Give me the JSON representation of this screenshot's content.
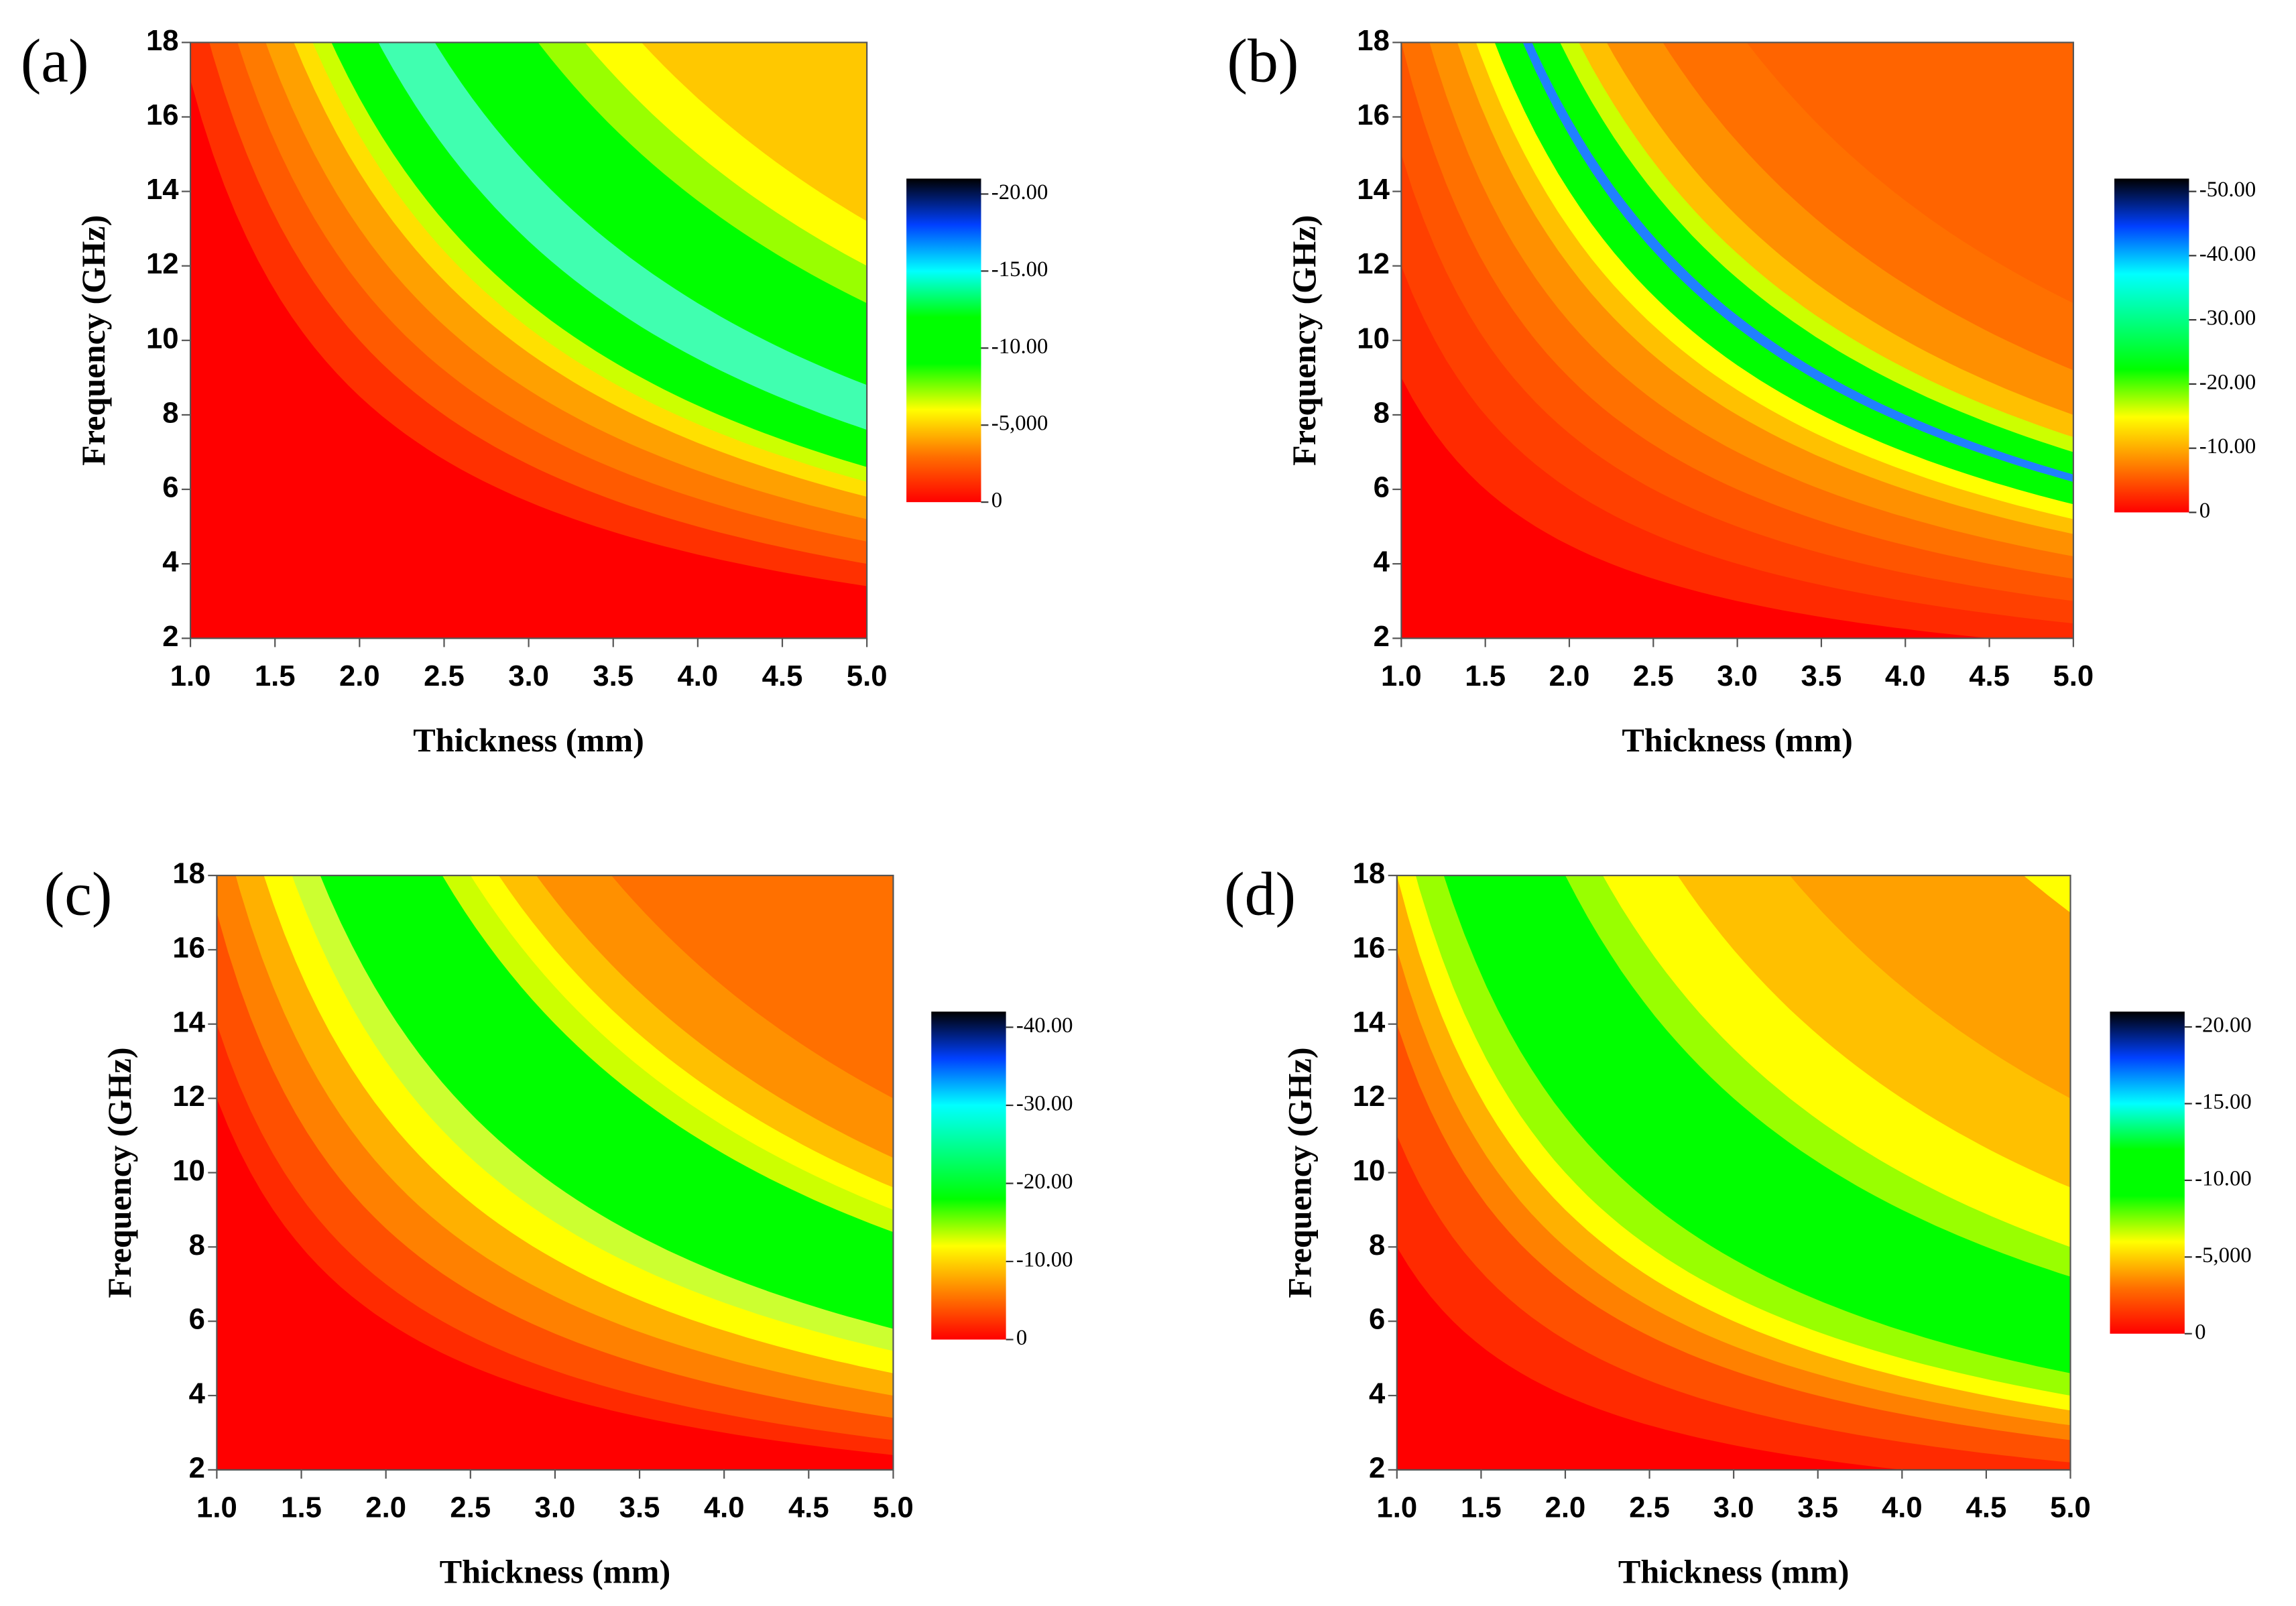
{
  "chart_data": [
    {
      "type": "contour",
      "label": "(a)",
      "xlabel": "Thickness (mm)",
      "ylabel": "Frequency (GHz)",
      "xlim": [
        1,
        5
      ],
      "xticks": [
        {
          "value": 1,
          "label": "1.0"
        },
        1.5,
        {
          "value": 2,
          "label": "2.0"
        },
        2.5,
        {
          "value": 3,
          "label": "3.0"
        },
        3.5,
        {
          "value": 4,
          "label": "4.0"
        },
        4.5,
        {
          "value": 5,
          "label": "5.0"
        }
      ],
      "ylim": [
        2,
        18
      ],
      "yticks": [
        2,
        4,
        6,
        8,
        10,
        12,
        14,
        16,
        18
      ],
      "colorbar": {
        "lim": [
          0,
          -21
        ],
        "ticks": [
          {
            "value": -20,
            "label": "-20.00"
          },
          {
            "value": -15,
            "label": "-15.00"
          },
          {
            "value": -10,
            "label": "-10.00"
          },
          {
            "value": -5,
            "label": "-5,000"
          },
          0
        ],
        "colors": [
          "#ff0000",
          "#ff7000",
          "#ffff00",
          "#00ff00",
          "#00ff00",
          "#00ffff",
          "#0040ff",
          "#000000"
        ]
      }
    },
    {
      "type": "contour",
      "label": "(b)",
      "xlabel": "Thickness (mm)",
      "ylabel": "Frequency (GHz)",
      "xlim": [
        1,
        5
      ],
      "xticks": [
        {
          "value": 1,
          "label": "1.0"
        },
        1.5,
        {
          "value": 2,
          "label": "2.0"
        },
        2.5,
        {
          "value": 3,
          "label": "3.0"
        },
        3.5,
        {
          "value": 4,
          "label": "4.0"
        },
        4.5,
        {
          "value": 5,
          "label": "5.0"
        }
      ],
      "ylim": [
        2,
        18
      ],
      "yticks": [
        2,
        4,
        6,
        8,
        10,
        12,
        14,
        16,
        18
      ],
      "colorbar": {
        "lim": [
          0,
          -52
        ],
        "ticks": [
          {
            "value": -50,
            "label": "-50.00"
          },
          {
            "value": -40,
            "label": "-40.00"
          },
          {
            "value": -30,
            "label": "-30.00"
          },
          {
            "value": -20,
            "label": "-20.00"
          },
          {
            "value": -10,
            "label": "-10.00"
          },
          0
        ],
        "colors": [
          "#ff0000",
          "#ff8000",
          "#ffff00",
          "#00ff00",
          "#00ff80",
          "#00ffff",
          "#0040ff",
          "#000000"
        ]
      }
    },
    {
      "type": "contour",
      "label": "(c)",
      "xlabel": "Thickness (mm)",
      "ylabel": "Frequency (GHz)",
      "xlim": [
        1,
        5
      ],
      "xticks": [
        {
          "value": 1,
          "label": "1.0"
        },
        1.5,
        {
          "value": 2,
          "label": "2.0"
        },
        2.5,
        {
          "value": 3,
          "label": "3.0"
        },
        3.5,
        {
          "value": 4,
          "label": "4.0"
        },
        4.5,
        {
          "value": 5,
          "label": "5.0"
        }
      ],
      "ylim": [
        2,
        18
      ],
      "yticks": [
        2,
        4,
        6,
        8,
        10,
        12,
        14,
        16,
        18
      ],
      "colorbar": {
        "lim": [
          0,
          -42
        ],
        "ticks": [
          {
            "value": -40,
            "label": "-40.00"
          },
          {
            "value": -30,
            "label": "-30.00"
          },
          {
            "value": -20,
            "label": "-20.00"
          },
          {
            "value": -10,
            "label": "-10.00"
          },
          0
        ],
        "colors": [
          "#ff0000",
          "#ff8000",
          "#ffff00",
          "#00ff00",
          "#00ff80",
          "#00ffff",
          "#0040ff",
          "#000000"
        ]
      }
    },
    {
      "type": "contour",
      "label": "(d)",
      "xlabel": "Thickness (mm)",
      "ylabel": "Frequency (GHz)",
      "xlim": [
        1,
        5
      ],
      "xticks": [
        {
          "value": 1,
          "label": "1.0"
        },
        1.5,
        {
          "value": 2,
          "label": "2.0"
        },
        2.5,
        {
          "value": 3,
          "label": "3.0"
        },
        3.5,
        {
          "value": 4,
          "label": "4.0"
        },
        4.5,
        {
          "value": 5,
          "label": "5.0"
        }
      ],
      "ylim": [
        2,
        18
      ],
      "yticks": [
        2,
        4,
        6,
        8,
        10,
        12,
        14,
        16,
        18
      ],
      "colorbar": {
        "lim": [
          0,
          -21
        ],
        "ticks": [
          {
            "value": -20,
            "label": "-20.00"
          },
          {
            "value": -15,
            "label": "-15.00"
          },
          {
            "value": -10,
            "label": "-10.00"
          },
          {
            "value": -5,
            "label": "-5,000"
          },
          0
        ],
        "colors": [
          "#ff0000",
          "#ff7000",
          "#ffff00",
          "#00ff00",
          "#00ff00",
          "#00ffff",
          "#0040ff",
          "#000000"
        ]
      }
    }
  ]
}
